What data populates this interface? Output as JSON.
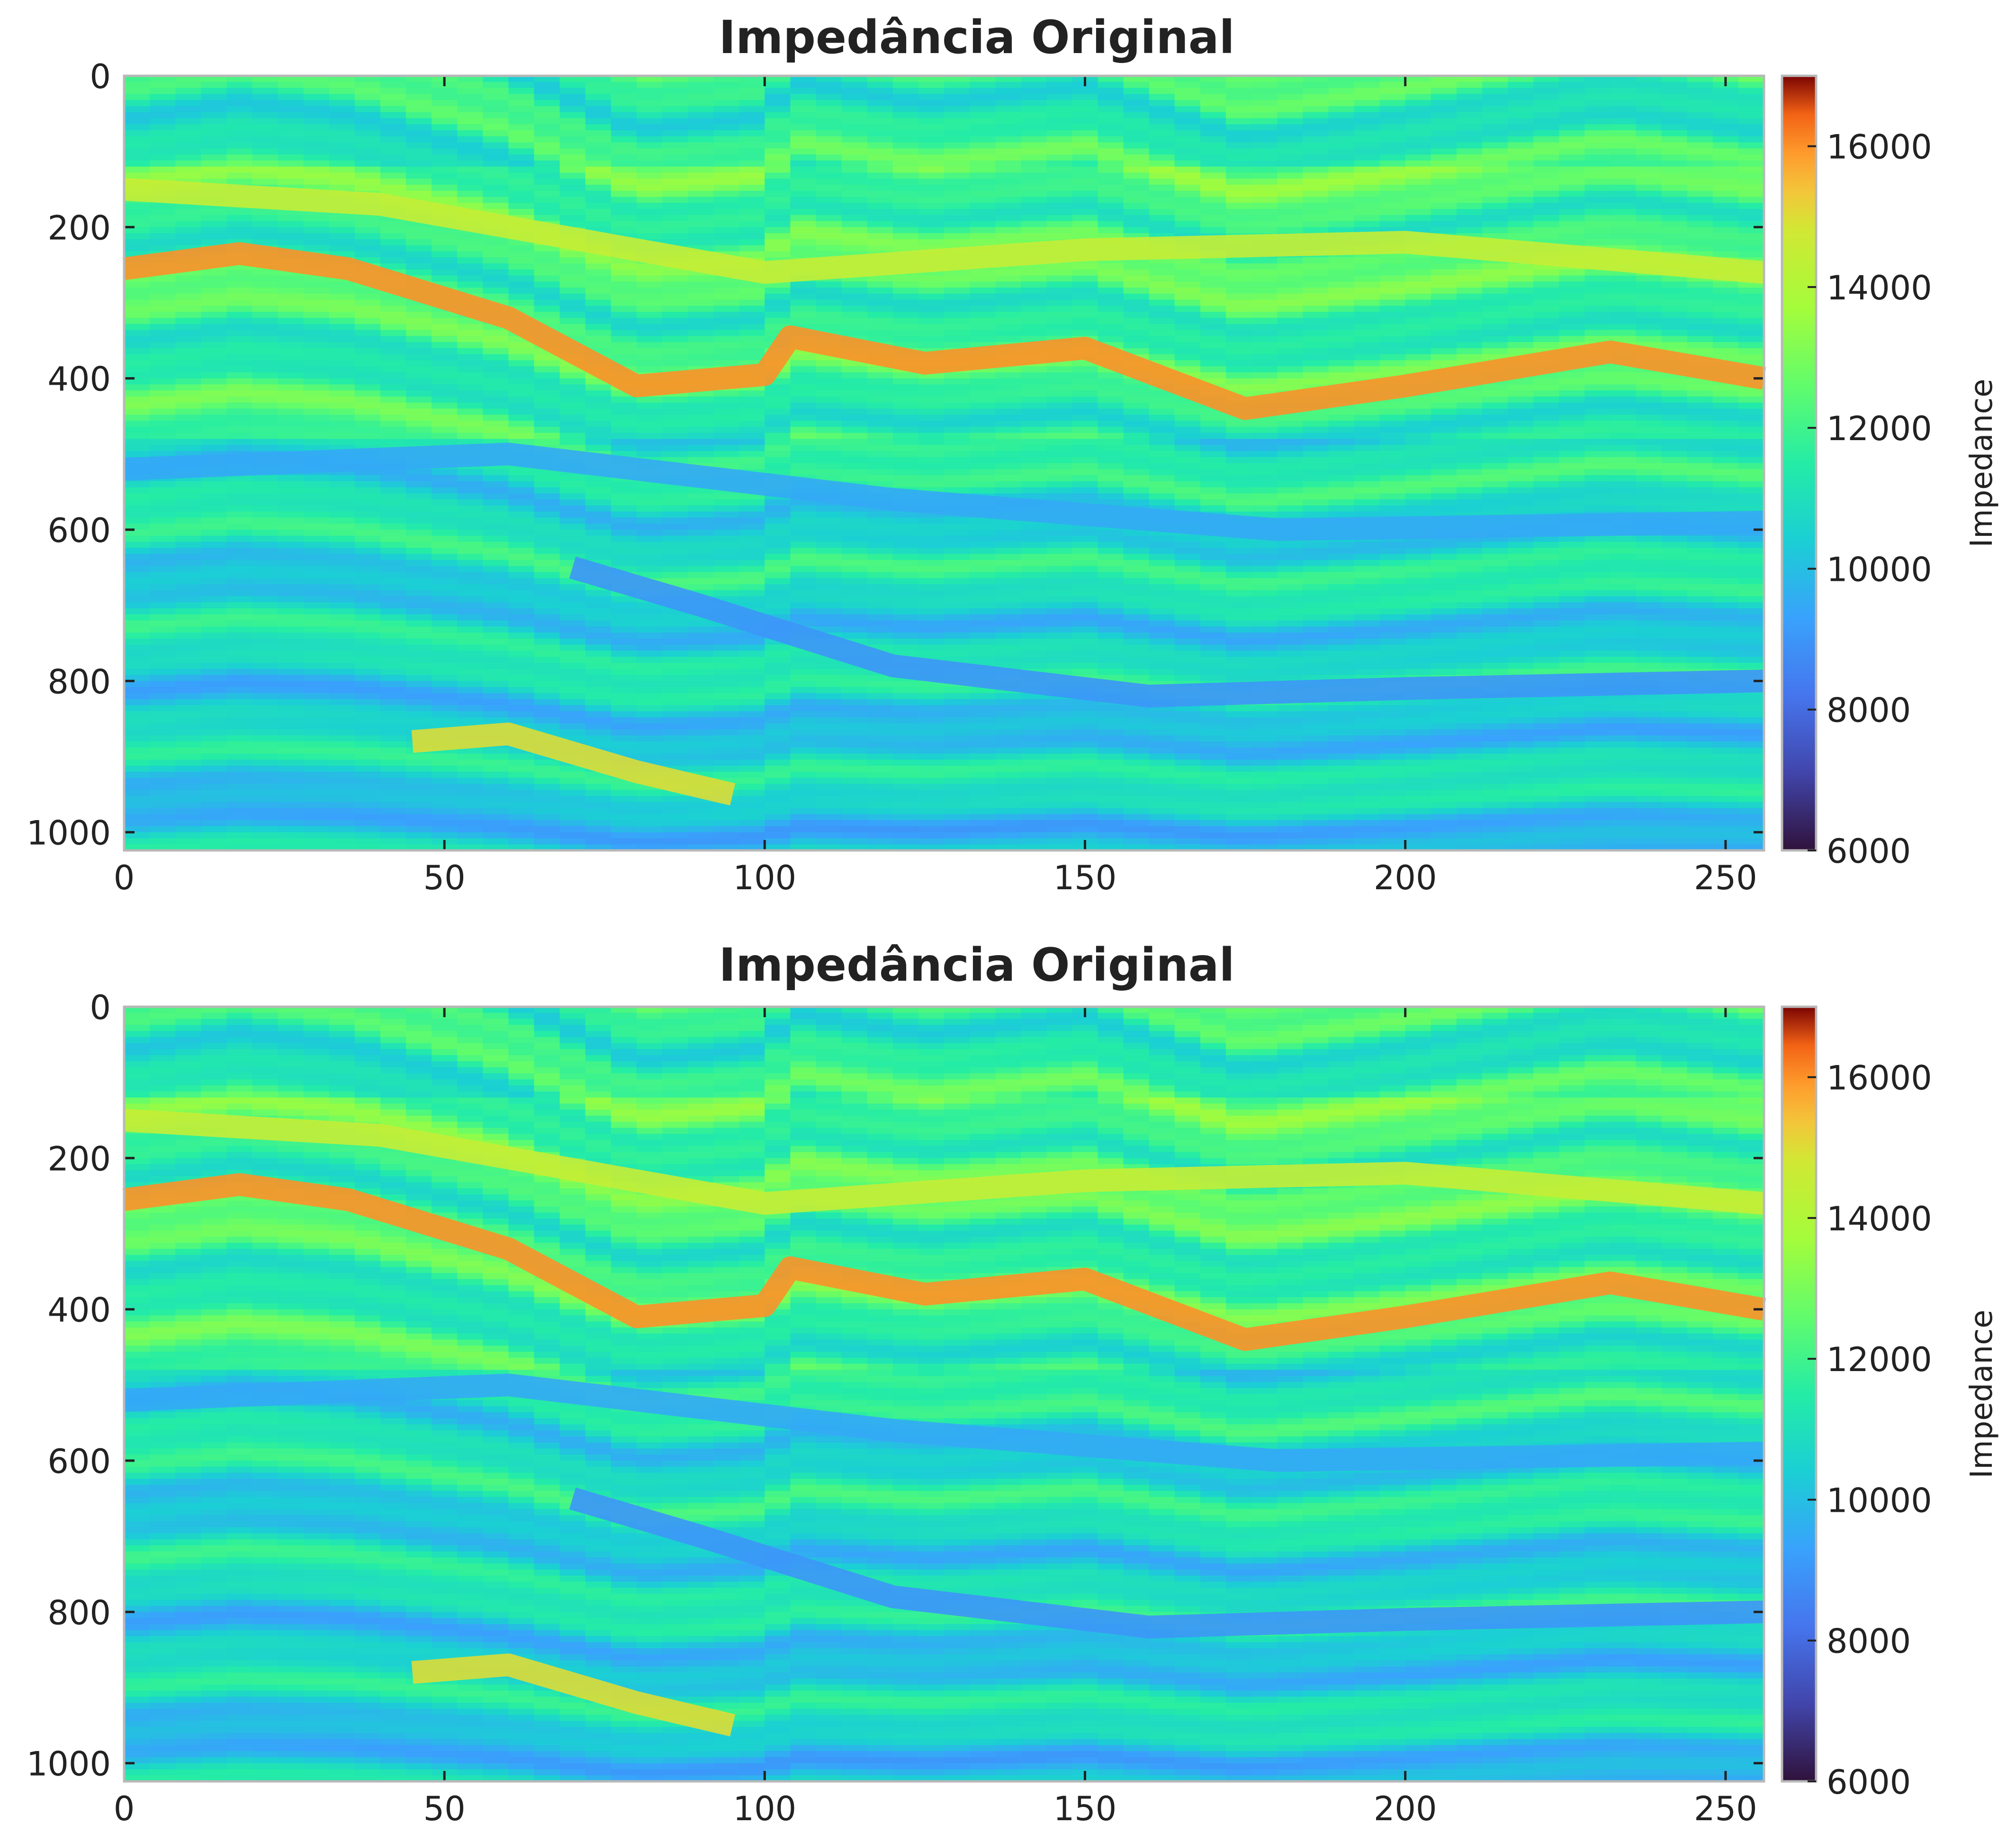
{
  "chart_data": [
    {
      "type": "heatmap",
      "title": "Impedância Original",
      "xlabel": "",
      "ylabel": "",
      "xlim": [
        0,
        256
      ],
      "ylim": [
        1024,
        0
      ],
      "xticks": [
        0,
        50,
        100,
        150,
        200,
        250
      ],
      "yticks": [
        0,
        200,
        400,
        600,
        800,
        1000
      ],
      "colormap": "turbo",
      "colorbar": {
        "label": "Impedance",
        "range": [
          6000,
          17000
        ],
        "ticks": [
          6000,
          8000,
          10000,
          12000,
          14000,
          16000
        ]
      },
      "horizons": [
        {
          "x": [
            0,
            18,
            35,
            60,
            80,
            100,
            104,
            125,
            150,
            175,
            200,
            232,
            256
          ],
          "y": [
            255,
            235,
            255,
            320,
            410,
            395,
            345,
            380,
            360,
            440,
            410,
            365,
            400
          ],
          "value": 16000
        },
        {
          "x": [
            0,
            40,
            80,
            100,
            150,
            200,
            256
          ],
          "y": [
            150,
            170,
            230,
            260,
            230,
            220,
            260
          ],
          "value": 14500
        },
        {
          "x": [
            45,
            60,
            80,
            95
          ],
          "y": [
            880,
            870,
            920,
            950
          ],
          "value": 15000
        },
        {
          "x": [
            0,
            60,
            120,
            180,
            256
          ],
          "y": [
            520,
            500,
            560,
            600,
            590
          ],
          "value": 9500
        },
        {
          "x": [
            70,
            90,
            120,
            160,
            200,
            256
          ],
          "y": [
            650,
            700,
            780,
            820,
            810,
            800
          ],
          "value": 9000
        }
      ],
      "grid": false,
      "legend": "none"
    },
    {
      "type": "heatmap",
      "title": "Impedância Original",
      "xlabel": "",
      "ylabel": "",
      "xlim": [
        0,
        256
      ],
      "ylim": [
        1024,
        0
      ],
      "xticks": [
        0,
        50,
        100,
        150,
        200,
        250
      ],
      "yticks": [
        0,
        200,
        400,
        600,
        800,
        1000
      ],
      "colormap": "turbo",
      "colorbar": {
        "label": "Impedance",
        "range": [
          6000,
          17000
        ],
        "ticks": [
          6000,
          8000,
          10000,
          12000,
          14000,
          16000
        ]
      },
      "horizons": [
        {
          "x": [
            0,
            18,
            35,
            60,
            80,
            100,
            104,
            125,
            150,
            175,
            200,
            232,
            256
          ],
          "y": [
            255,
            235,
            255,
            320,
            410,
            395,
            345,
            380,
            360,
            440,
            410,
            365,
            400
          ],
          "value": 16000
        },
        {
          "x": [
            0,
            40,
            80,
            100,
            150,
            200,
            256
          ],
          "y": [
            150,
            170,
            230,
            260,
            230,
            220,
            260
          ],
          "value": 14500
        },
        {
          "x": [
            45,
            60,
            80,
            95
          ],
          "y": [
            880,
            870,
            920,
            950
          ],
          "value": 15000
        },
        {
          "x": [
            0,
            60,
            120,
            180,
            256
          ],
          "y": [
            520,
            500,
            560,
            600,
            590
          ],
          "value": 9500
        },
        {
          "x": [
            70,
            90,
            120,
            160,
            200,
            256
          ],
          "y": [
            650,
            700,
            780,
            820,
            810,
            800
          ],
          "value": 9000
        }
      ],
      "grid": false,
      "legend": "none"
    }
  ]
}
